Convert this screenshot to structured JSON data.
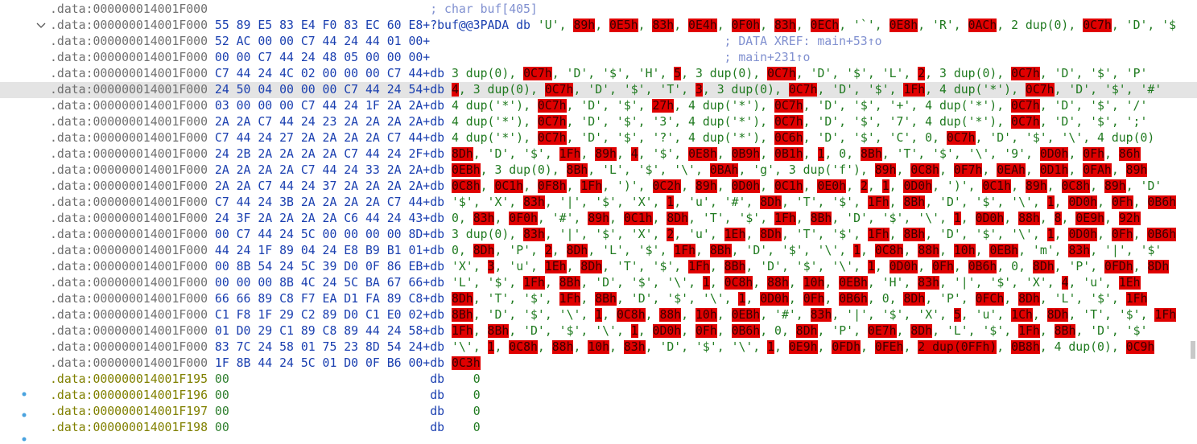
{
  "lines": [
    {
      "address": ".data:000000014001F000",
      "comment": "; char buf[405]"
    },
    {
      "address": ".data:000000014001F000",
      "bytes": "55 89 E5 83 E4 F0 83 EC 60 E8+",
      "label": "?buf@@3PADA",
      "directive": "db",
      "operands": [
        "'U'",
        "89h",
        "0E5h",
        "83h",
        "0E4h",
        "0F0h",
        "83h",
        "0ECh",
        "'`'",
        "0E8h",
        "'R'",
        "0ACh",
        "2 dup(0)",
        "0C7h",
        "'D'",
        "'$"
      ],
      "highlighted": [
        1,
        2,
        3,
        4,
        5,
        6,
        7,
        9,
        11,
        13
      ]
    },
    {
      "address": ".data:000000014001F000",
      "bytes": "52 AC 00 00 C7 44 24 44 01 00+",
      "comment": "; DATA XREF: main+53↑o"
    },
    {
      "address": ".data:000000014001F000",
      "bytes": "00 00 C7 44 24 48 05 00 00 00+",
      "comment": "; main+231↑o"
    },
    {
      "address": ".data:000000014001F000",
      "bytes": "C7 44 24 4C 02 00 00 00 C7 44+",
      "directive": "db",
      "operands": [
        "3 dup(0)",
        "0C7h",
        "'D'",
        "'$'",
        "'H'",
        "5",
        "3 dup(0)",
        "0C7h",
        "'D'",
        "'$'",
        "'L'",
        "2",
        "3 dup(0)",
        "0C7h",
        "'D'",
        "'$'",
        "'P'"
      ],
      "highlighted": [
        1,
        5,
        7,
        11,
        13
      ]
    },
    {
      "address": ".data:000000014001F000",
      "bytes": "24 50 04 00 00 00 C7 44 24 54+",
      "directive": "db",
      "operands": [
        "4",
        "3 dup(0)",
        "0C7h",
        "'D'",
        "'$'",
        "'T'",
        "3",
        "3 dup(0)",
        "0C7h",
        "'D'",
        "'$'",
        "1Fh",
        "4 dup('*')",
        "0C7h",
        "'D'",
        "'$'",
        "'#'"
      ],
      "highlighted": [
        0,
        2,
        6,
        8,
        11,
        13
      ],
      "selected": true
    },
    {
      "address": ".data:000000014001F000",
      "bytes": "03 00 00 00 C7 44 24 1F 2A 2A+",
      "directive": "db",
      "operands": [
        "4 dup('*')",
        "0C7h",
        "'D'",
        "'$'",
        "27h",
        "4 dup('*')",
        "0C7h",
        "'D'",
        "'$'",
        "'+'",
        "4 dup('*')",
        "0C7h",
        "'D'",
        "'$'",
        "'/'"
      ],
      "highlighted": [
        1,
        4,
        6,
        11
      ]
    },
    {
      "address": ".data:000000014001F000",
      "bytes": "2A 2A C7 44 24 23 2A 2A 2A 2A+",
      "directive": "db",
      "operands": [
        "4 dup('*')",
        "0C7h",
        "'D'",
        "'$'",
        "'3'",
        "4 dup('*')",
        "0C7h",
        "'D'",
        "'$'",
        "'7'",
        "4 dup('*')",
        "0C7h",
        "'D'",
        "'$'",
        "';'"
      ],
      "highlighted": [
        1,
        6,
        11
      ]
    },
    {
      "address": ".data:000000014001F000",
      "bytes": "C7 44 24 27 2A 2A 2A 2A C7 44+",
      "directive": "db",
      "operands": [
        "4 dup('*')",
        "0C7h",
        "'D'",
        "'$'",
        "'?'",
        "4 dup('*')",
        "0C6h",
        "'D'",
        "'$'",
        "'C'",
        "0",
        "0C7h",
        "'D'",
        "'$'",
        "'\\'",
        "4 dup(0)"
      ],
      "highlighted": [
        1,
        6,
        11
      ]
    },
    {
      "address": ".data:000000014001F000",
      "bytes": "24 2B 2A 2A 2A 2A C7 44 24 2F+",
      "directive": "db",
      "operands": [
        "8Dh",
        "'D'",
        "'$'",
        "1Fh",
        "89h",
        "4",
        "'$'",
        "0E8h",
        "0B9h",
        "0B1h",
        "1",
        "0",
        "8Bh",
        "'T'",
        "'$'",
        "'\\'",
        "'9'",
        "0D0h",
        "0Fh",
        "86h"
      ],
      "highlighted": [
        0,
        3,
        4,
        5,
        7,
        8,
        9,
        10,
        12,
        17,
        18,
        19
      ]
    },
    {
      "address": ".data:000000014001F000",
      "bytes": "2A 2A 2A 2A C7 44 24 33 2A 2A+",
      "directive": "db",
      "operands": [
        "0EBh",
        "3 dup(0)",
        "8Bh",
        "'L'",
        "'$'",
        "'\\'",
        "0BAh",
        "'g'",
        "3 dup('f')",
        "89h",
        "0C8h",
        "0F7h",
        "0EAh",
        "0D1h",
        "0FAh",
        "89h"
      ],
      "highlighted": [
        0,
        2,
        6,
        9,
        10,
        11,
        12,
        13,
        14,
        15
      ]
    },
    {
      "address": ".data:000000014001F000",
      "bytes": "2A 2A C7 44 24 37 2A 2A 2A 2A+",
      "directive": "db",
      "operands": [
        "0C8h",
        "0C1h",
        "0F8h",
        "1Fh",
        "')'",
        "0C2h",
        "89h",
        "0D0h",
        "0C1h",
        "0E0h",
        "2",
        "1",
        "0D0h",
        "')'",
        "0C1h",
        "89h",
        "0C8h",
        "89h",
        "'D'"
      ],
      "highlighted": [
        0,
        1,
        2,
        3,
        5,
        6,
        7,
        8,
        9,
        10,
        11,
        12,
        14,
        15,
        16,
        17
      ]
    },
    {
      "address": ".data:000000014001F000",
      "bytes": "C7 44 24 3B 2A 2A 2A 2A C7 44+",
      "directive": "db",
      "operands": [
        "'$'",
        "'X'",
        "83h",
        "'|'",
        "'$'",
        "'X'",
        "1",
        "'u'",
        "'#'",
        "8Dh",
        "'T'",
        "'$'",
        "1Fh",
        "8Bh",
        "'D'",
        "'$'",
        "'\\'",
        "1",
        "0D0h",
        "0Fh",
        "0B6h"
      ],
      "highlighted": [
        2,
        6,
        9,
        12,
        13,
        17,
        18,
        19,
        20
      ]
    },
    {
      "address": ".data:000000014001F000",
      "bytes": "24 3F 2A 2A 2A 2A C6 44 24 43+",
      "directive": "db",
      "operands": [
        "0",
        "83h",
        "0F0h",
        "'#'",
        "89h",
        "0C1h",
        "8Dh",
        "'T'",
        "'$'",
        "1Fh",
        "8Bh",
        "'D'",
        "'$'",
        "'\\'",
        "1",
        "0D0h",
        "88h",
        "8",
        "0E9h",
        "92h"
      ],
      "highlighted": [
        1,
        2,
        4,
        5,
        6,
        9,
        10,
        14,
        15,
        16,
        17,
        18,
        19
      ]
    },
    {
      "address": ".data:000000014001F000",
      "bytes": "00 C7 44 24 5C 00 00 00 00 8D+",
      "directive": "db",
      "operands": [
        "3 dup(0)",
        "83h",
        "'|'",
        "'$'",
        "'X'",
        "2",
        "'u'",
        "1Eh",
        "8Dh",
        "'T'",
        "'$'",
        "1Fh",
        "8Bh",
        "'D'",
        "'$'",
        "'\\'",
        "1",
        "0D0h",
        "0Fh",
        "0B6h"
      ],
      "highlighted": [
        1,
        5,
        7,
        8,
        11,
        12,
        16,
        17,
        18,
        19
      ]
    },
    {
      "address": ".data:000000014001F000",
      "bytes": "44 24 1F 89 04 24 E8 B9 B1 01+",
      "directive": "db",
      "operands": [
        "0",
        "8Dh",
        "'P'",
        "2",
        "8Dh",
        "'L'",
        "'$'",
        "1Fh",
        "8Bh",
        "'D'",
        "'$'",
        "'\\'",
        "1",
        "0C8h",
        "88h",
        "10h",
        "0EBh",
        "'m'",
        "83h",
        "'|'",
        "'$'"
      ],
      "highlighted": [
        1,
        3,
        4,
        7,
        8,
        12,
        13,
        14,
        15,
        16,
        18
      ]
    },
    {
      "address": ".data:000000014001F000",
      "bytes": "00 8B 54 24 5C 39 D0 0F 86 EB+",
      "directive": "db",
      "operands": [
        "'X'",
        "3",
        "'u'",
        "1Eh",
        "8Dh",
        "'T'",
        "'$'",
        "1Fh",
        "8Bh",
        "'D'",
        "'$'",
        "'\\'",
        "1",
        "0D0h",
        "0Fh",
        "0B6h",
        "0",
        "8Dh",
        "'P'",
        "0FDh",
        "8Dh"
      ],
      "highlighted": [
        1,
        3,
        4,
        7,
        8,
        12,
        13,
        14,
        15,
        17,
        19,
        20
      ]
    },
    {
      "address": ".data:000000014001F000",
      "bytes": "00 00 00 8B 4C 24 5C BA 67 66+",
      "directive": "db",
      "operands": [
        "'L'",
        "'$'",
        "1Fh",
        "8Bh",
        "'D'",
        "'$'",
        "'\\'",
        "1",
        "0C8h",
        "88h",
        "10h",
        "0EBh",
        "'H'",
        "83h",
        "'|'",
        "'$'",
        "'X'",
        "4",
        "'u'",
        "1Eh"
      ],
      "highlighted": [
        2,
        3,
        7,
        8,
        9,
        10,
        11,
        13,
        17,
        19
      ]
    },
    {
      "address": ".data:000000014001F000",
      "bytes": "66 66 89 C8 F7 EA D1 FA 89 C8+",
      "directive": "db",
      "operands": [
        "8Dh",
        "'T'",
        "'$'",
        "1Fh",
        "8Bh",
        "'D'",
        "'$'",
        "'\\'",
        "1",
        "0D0h",
        "0Fh",
        "0B6h",
        "0",
        "8Dh",
        "'P'",
        "0FCh",
        "8Dh",
        "'L'",
        "'$'",
        "1Fh"
      ],
      "highlighted": [
        0,
        3,
        4,
        8,
        9,
        10,
        11,
        13,
        15,
        16,
        19
      ]
    },
    {
      "address": ".data:000000014001F000",
      "bytes": "C1 F8 1F 29 C2 89 D0 C1 E0 02+",
      "directive": "db",
      "operands": [
        "8Bh",
        "'D'",
        "'$'",
        "'\\'",
        "1",
        "0C8h",
        "88h",
        "10h",
        "0EBh",
        "'#'",
        "83h",
        "'|'",
        "'$'",
        "'X'",
        "5",
        "'u'",
        "1Ch",
        "8Dh",
        "'T'",
        "'$'",
        "1Fh"
      ],
      "highlighted": [
        0,
        4,
        5,
        6,
        7,
        8,
        10,
        14,
        16,
        17,
        20
      ]
    },
    {
      "address": ".data:000000014001F000",
      "bytes": "01 D0 29 C1 89 C8 89 44 24 58+",
      "directive": "db",
      "operands": [
        "1Fh",
        "8Bh",
        "'D'",
        "'$'",
        "'\\'",
        "1",
        "0D0h",
        "0Fh",
        "0B6h",
        "0",
        "8Dh",
        "'P'",
        "0E7h",
        "8Dh",
        "'L'",
        "'$'",
        "1Fh",
        "8Bh",
        "'D'",
        "'$'"
      ],
      "highlighted": [
        0,
        1,
        5,
        6,
        7,
        8,
        10,
        12,
        13,
        16,
        17
      ]
    },
    {
      "address": ".data:000000014001F000",
      "bytes": "83 7C 24 58 01 75 23 8D 54 24+",
      "directive": "db",
      "operands": [
        "'\\'",
        "1",
        "0C8h",
        "88h",
        "10h",
        "83h",
        "'D'",
        "'$'",
        "'\\'",
        "1",
        "0E9h",
        "0FDh",
        "0FEh",
        "2 dup(0FFh)",
        "0B8h",
        "4 dup(0)",
        "0C9h"
      ],
      "highlighted": [
        1,
        2,
        3,
        4,
        5,
        9,
        10,
        11,
        12,
        13,
        14,
        16
      ]
    },
    {
      "address": ".data:000000014001F000",
      "bytes": "1F 8B 44 24 5C 01 D0 0F B6 00+",
      "directive": "db",
      "operands": [
        "0C3h"
      ],
      "highlighted": [
        0
      ]
    },
    {
      "address": ".data:000000014001F195",
      "bytes": "00",
      "directive": "db",
      "value": "0",
      "undefined": true
    },
    {
      "address": ".data:000000014001F196",
      "bytes": "00",
      "directive": "db",
      "value": "0",
      "undefined": true
    },
    {
      "address": ".data:000000014001F197",
      "bytes": "00",
      "directive": "db",
      "value": "0",
      "undefined": true
    },
    {
      "address": ".data:000000014001F198",
      "bytes": "00",
      "directive": "db",
      "value": "0",
      "undefined": true
    }
  ]
}
